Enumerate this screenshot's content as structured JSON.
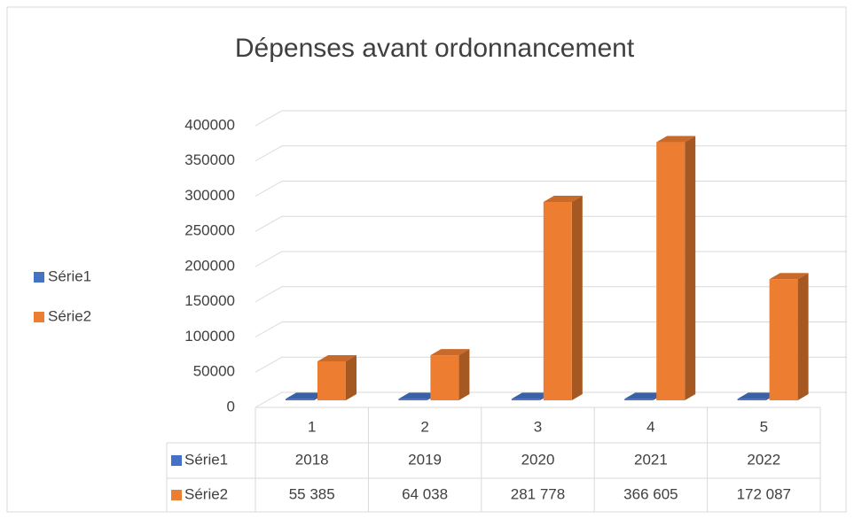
{
  "chart_data": {
    "type": "bar",
    "title": "Dépenses avant ordonnancement",
    "categories": [
      "1",
      "2",
      "3",
      "4",
      "5"
    ],
    "series": [
      {
        "name": "Série1",
        "color": "#4472c4",
        "values": [
          2018,
          2019,
          2020,
          2021,
          2022
        ]
      },
      {
        "name": "Série2",
        "color": "#ed7d31",
        "values": [
          55385,
          64038,
          281778,
          366605,
          172087
        ],
        "value_labels": [
          "55 385",
          "64 038",
          "281 778",
          "366 605",
          "172 087"
        ]
      }
    ],
    "ylim": [
      0,
      400000
    ],
    "yticks": [
      0,
      50000,
      100000,
      150000,
      200000,
      250000,
      300000,
      350000,
      400000
    ],
    "grid": true,
    "legend": "left",
    "data_table": true
  }
}
